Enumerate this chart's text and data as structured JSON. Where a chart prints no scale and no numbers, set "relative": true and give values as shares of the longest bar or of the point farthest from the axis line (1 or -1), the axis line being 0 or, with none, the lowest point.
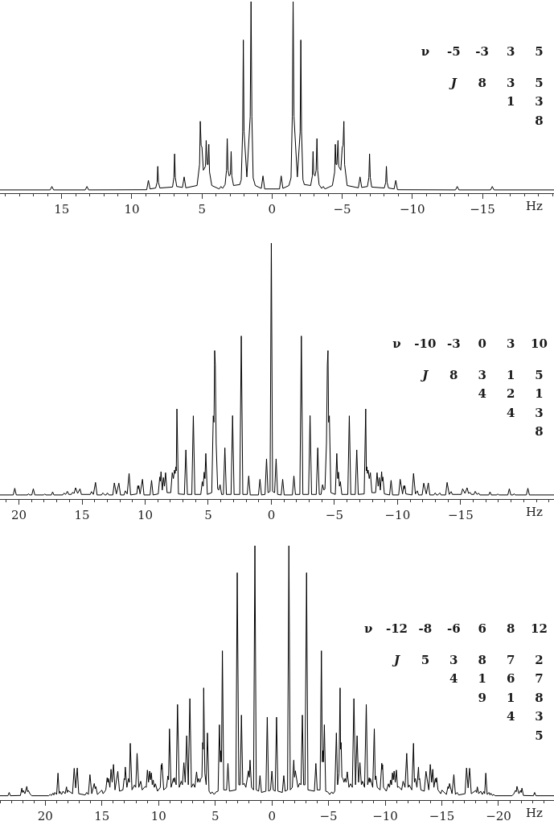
{
  "chart_data": [
    {
      "type": "line",
      "relative": true,
      "xlabel": "Hz",
      "tick_labels": "x",
      "xlim": [
        19.4,
        -20.1
      ],
      "xticks": [
        {
          "value": 19,
          "label": null
        },
        {
          "value": 18,
          "label": null
        },
        {
          "value": 17,
          "label": null
        },
        {
          "value": 16,
          "label": null
        },
        15,
        {
          "value": 14,
          "label": null
        },
        {
          "value": 13,
          "label": null
        },
        {
          "value": 12,
          "label": null
        },
        {
          "value": 11,
          "label": null
        },
        10,
        {
          "value": 9,
          "label": null
        },
        {
          "value": 8,
          "label": null
        },
        {
          "value": 7,
          "label": null
        },
        {
          "value": 6,
          "label": null
        },
        5,
        {
          "value": 4,
          "label": null
        },
        {
          "value": 3,
          "label": null
        },
        {
          "value": 2,
          "label": null
        },
        {
          "value": 1,
          "label": null
        },
        0,
        {
          "value": -1,
          "label": null
        },
        {
          "value": -2,
          "label": null
        },
        {
          "value": -3,
          "label": null
        },
        {
          "value": -4,
          "label": null
        },
        {
          "value": -5,
          "label": "−5"
        },
        {
          "value": -6,
          "label": null
        },
        {
          "value": -7,
          "label": null
        },
        {
          "value": -8,
          "label": null
        },
        {
          "value": -9,
          "label": null
        },
        {
          "value": -10,
          "label": "−10"
        },
        {
          "value": -11,
          "label": null
        },
        {
          "value": -12,
          "label": null
        },
        {
          "value": -13,
          "label": null
        },
        {
          "value": -14,
          "label": null
        },
        {
          "value": -15,
          "label": "−15"
        },
        {
          "value": -16,
          "label": null
        },
        {
          "value": -17,
          "label": null
        },
        {
          "value": -18,
          "label": null
        },
        {
          "value": -19,
          "label": null
        },
        {
          "value": -20,
          "label": null
        }
      ],
      "annotations": [
        "ν -5 -3 3 5\nJ 8 3 5\n1 3\n8"
      ],
      "x": [
        19.4,
        15.82,
        15.7,
        15.58,
        13.32,
        13.2,
        13.08,
        8.94,
        8.82,
        8.7,
        8.3,
        8.2,
        8.15,
        8.1,
        8.0,
        7.1,
        7.0,
        6.95,
        6.9,
        6.8,
        6.39,
        6.27,
        6.15,
        5.35,
        5.17,
        5.12,
        5.06,
        5.0,
        4.9,
        4.75,
        4.7,
        4.62,
        4.56,
        4.51,
        4.46,
        4.3,
        3.77,
        3.65,
        3.53,
        3.35,
        3.25,
        3.2,
        3.14,
        3.06,
        2.97,
        2.92,
        2.87,
        2.75,
        2.3,
        2.2,
        2.1,
        2.05,
        2.0,
        1.8,
        1.56,
        1.5,
        1.44,
        1.35,
        1.2,
        0.77,
        0.65,
        0.53,
        -0.53,
        -0.65,
        -0.77,
        -1.2,
        -1.35,
        -1.44,
        -1.5,
        -1.56,
        -1.8,
        -2.0,
        -2.05,
        -2.1,
        -2.2,
        -2.3,
        -2.75,
        -2.87,
        -2.92,
        -2.97,
        -3.06,
        -3.14,
        -3.2,
        -3.25,
        -3.35,
        -3.53,
        -3.65,
        -3.77,
        -4.3,
        -4.46,
        -4.51,
        -4.56,
        -4.62,
        -4.7,
        -4.75,
        -4.9,
        -5.0,
        -5.06,
        -5.12,
        -5.17,
        -5.35,
        -6.15,
        -6.27,
        -6.39,
        -6.8,
        -6.9,
        -6.95,
        -7.0,
        -7.1,
        -8.0,
        -8.1,
        -8.15,
        -8.2,
        -8.3,
        -8.7,
        -8.82,
        -8.94,
        -13.08,
        -13.2,
        -13.32,
        -15.58,
        -15.7,
        -15.82,
        -20.1
      ],
      "series": [
        {
          "color": "#000000",
          "values": [
            0.017,
            0.017,
            0.035,
            0.017,
            0.017,
            0.035,
            0.017,
            0.018,
            0.067,
            0.022,
            0.027,
            0.056,
            0.14,
            0.056,
            0.027,
            0.032,
            0.082,
            0.205,
            0.082,
            0.035,
            0.03,
            0.085,
            0.028,
            0.04,
            0.15,
            0.375,
            0.25,
            0.24,
            0.12,
            0.14,
            0.275,
            0.15,
            0.15,
            0.255,
            0.11,
            0.04,
            0.022,
            0.035,
            0.025,
            0.045,
            0.12,
            0.285,
            0.12,
            0.09,
            0.1,
            0.218,
            0.09,
            0.04,
            0.045,
            0.07,
            0.32,
            0.8,
            0.32,
            0.085,
            0.4,
            1.0,
            0.4,
            0.08,
            0.04,
            0.025,
            0.09,
            0.022,
            0.022,
            0.09,
            0.025,
            0.04,
            0.08,
            0.4,
            1.0,
            0.4,
            0.085,
            0.32,
            0.8,
            0.32,
            0.07,
            0.045,
            0.04,
            0.09,
            0.218,
            0.1,
            0.09,
            0.12,
            0.285,
            0.12,
            0.045,
            0.025,
            0.035,
            0.022,
            0.04,
            0.11,
            0.255,
            0.15,
            0.15,
            0.275,
            0.14,
            0.12,
            0.24,
            0.25,
            0.375,
            0.15,
            0.04,
            0.028,
            0.085,
            0.03,
            0.035,
            0.082,
            0.205,
            0.082,
            0.032,
            0.027,
            0.056,
            0.14,
            0.056,
            0.027,
            0.022,
            0.067,
            0.018,
            0.017,
            0.035,
            0.017,
            0.017,
            0.035,
            0.017,
            0.017
          ]
        }
      ]
    },
    {
      "type": "line",
      "relative": true,
      "xlabel": "Hz",
      "tick_labels": "x",
      "xlim": [
        21.5,
        -22.4
      ],
      "xticks": [
        {
          "value": 21,
          "label": null
        },
        20,
        {
          "value": 19,
          "label": null
        },
        {
          "value": 18,
          "label": null
        },
        {
          "value": 17,
          "label": null
        },
        {
          "value": 16,
          "label": null
        },
        15,
        {
          "value": 14,
          "label": null
        },
        {
          "value": 13,
          "label": null
        },
        {
          "value": 12,
          "label": null
        },
        {
          "value": 11,
          "label": null
        },
        10,
        {
          "value": 9,
          "label": null
        },
        {
          "value": 8,
          "label": null
        },
        {
          "value": 7,
          "label": null
        },
        {
          "value": 6,
          "label": null
        },
        5,
        {
          "value": 4,
          "label": null
        },
        {
          "value": 3,
          "label": null
        },
        {
          "value": 2,
          "label": null
        },
        {
          "value": 1,
          "label": null
        },
        0,
        {
          "value": -1,
          "label": null
        },
        {
          "value": -2,
          "label": null
        },
        {
          "value": -3,
          "label": null
        },
        {
          "value": -4,
          "label": null
        },
        {
          "value": -5,
          "label": "−5"
        },
        {
          "value": -6,
          "label": null
        },
        {
          "value": -7,
          "label": null
        },
        {
          "value": -8,
          "label": null
        },
        {
          "value": -9,
          "label": null
        },
        {
          "value": -10,
          "label": "−10"
        },
        {
          "value": -11,
          "label": null
        },
        {
          "value": -12,
          "label": null
        },
        {
          "value": -13,
          "label": null
        },
        {
          "value": -14,
          "label": null
        },
        {
          "value": -15,
          "label": "−15"
        },
        {
          "value": -16,
          "label": null
        },
        {
          "value": -17,
          "label": null
        },
        {
          "value": -18,
          "label": null
        },
        {
          "value": -19,
          "label": null
        },
        {
          "value": -20,
          "label": null
        },
        {
          "value": -21,
          "label": null
        },
        {
          "value": -22,
          "label": null
        }
      ],
      "annotations": [
        "ν -10 -3 0 3 10\nJ 8 3 1 5\n4 2 1\n4 3\n8"
      ],
      "x": [
        21.5,
        20.45,
        20.33,
        20.21,
        19.32,
        19.24,
        19.16,
        18.98,
        18.86,
        18.74,
        18.03,
        17.95,
        17.87,
        17.43,
        17.33,
        17.23,
        16.53,
        16.43,
        16.3,
        16.16,
        16.05,
        15.85,
        15.75,
        15.63,
        15.51,
        15.35,
        15.16,
        15.05,
        14.35,
        14.25,
        14.1,
        13.93,
        13.81,
        13.45,
        13.35,
        13.2,
        13.09,
        12.99,
        12.87,
        12.56,
        12.44,
        12.28,
        12.08,
        11.95,
        11.67,
        11.57,
        11.42,
        11.27,
        11.15,
        10.66,
        10.58,
        10.54,
        10.5,
        10.4,
        10.21,
        10.09,
        9.61,
        9.49,
        9.37,
        8.96,
        8.84,
        8.79,
        8.74,
        8.64,
        8.55,
        8.47,
        8.38,
        8.26,
        7.97,
        7.85,
        7.76,
        7.67,
        7.62,
        7.57,
        7.53,
        7.48,
        7.36,
        6.89,
        6.77,
        6.65,
        6.3,
        6.18,
        6.06,
        5.59,
        5.47,
        5.4,
        5.32,
        5.26,
        5.19,
        5.07,
        4.72,
        4.6,
        4.54,
        4.49,
        4.44,
        4.37,
        4.25,
        4.17,
        4.06,
        3.94,
        3.8,
        3.68,
        3.56,
        3.19,
        3.07,
        2.95,
        2.5,
        2.38,
        2.26,
        1.91,
        1.79,
        1.67,
        1.02,
        0.9,
        0.78,
        0.5,
        0.38,
        0.26,
        0.1,
        0,
        -0.1,
        -0.26,
        -0.38,
        -0.5,
        -0.78,
        -0.9,
        -1.02,
        -1.67,
        -1.79,
        -1.91,
        -2.26,
        -2.38,
        -2.5,
        -2.95,
        -3.07,
        -3.19,
        -3.56,
        -3.68,
        -3.8,
        -3.94,
        -4.06,
        -4.17,
        -4.25,
        -4.37,
        -4.44,
        -4.49,
        -4.54,
        -4.6,
        -4.72,
        -5.07,
        -5.19,
        -5.26,
        -5.32,
        -5.4,
        -5.47,
        -5.59,
        -6.06,
        -6.18,
        -6.3,
        -6.65,
        -6.77,
        -6.89,
        -7.36,
        -7.48,
        -7.53,
        -7.57,
        -7.62,
        -7.67,
        -7.76,
        -7.85,
        -7.97,
        -8.26,
        -8.38,
        -8.47,
        -8.55,
        -8.64,
        -8.74,
        -8.79,
        -8.84,
        -8.96,
        -9.37,
        -9.49,
        -9.61,
        -10.09,
        -10.21,
        -10.4,
        -10.5,
        -10.54,
        -10.58,
        -10.66,
        -11.15,
        -11.27,
        -11.42,
        -11.57,
        -11.67,
        -11.95,
        -12.08,
        -12.28,
        -12.44,
        -12.56,
        -12.87,
        -12.99,
        -13.09,
        -13.2,
        -13.35,
        -13.45,
        -13.81,
        -13.93,
        -14.1,
        -14.25,
        -14.35,
        -15.05,
        -15.16,
        -15.35,
        -15.51,
        -15.63,
        -15.75,
        -15.85,
        -16.05,
        -16.16,
        -16.3,
        -16.43,
        -16.53,
        -17.23,
        -17.33,
        -17.43,
        -17.87,
        -17.95,
        -18.03,
        -18.74,
        -18.86,
        -18.98,
        -19.16,
        -19.24,
        -19.32,
        -20.21,
        -20.33,
        -20.45,
        -22.4
      ],
      "series": [
        {
          "color": "#000000",
          "values": [
            0.016,
            0.016,
            0.042,
            0.016,
            0.016,
            0.021,
            0.016,
            0.016,
            0.04,
            0.016,
            0.016,
            0.02,
            0.016,
            0.016,
            0.028,
            0.016,
            0.016,
            0.023,
            0.018,
            0.03,
            0.018,
            0.018,
            0.026,
            0.022,
            0.044,
            0.022,
            0.04,
            0.018,
            0.018,
            0.029,
            0.018,
            0.065,
            0.016,
            0.016,
            0.024,
            0.016,
            0.016,
            0.024,
            0.016,
            0.016,
            0.063,
            0.02,
            0.062,
            0.016,
            0.016,
            0.032,
            0.02,
            0.1,
            0.016,
            0.02,
            0.052,
            0.04,
            0.052,
            0.02,
            0.077,
            0.016,
            0.016,
            0.073,
            0.016,
            0.02,
            0.086,
            0.07,
            0.107,
            0.035,
            0.084,
            0.05,
            0.103,
            0.025,
            0.025,
            0.103,
            0.08,
            0.113,
            0.1,
            0.126,
            0.11,
            0.352,
            0.02,
            0.018,
            0.192,
            0.018,
            0.018,
            0.325,
            0.018,
            0.018,
            0.068,
            0.05,
            0.105,
            0.08,
            0.178,
            0.018,
            0.025,
            0.325,
            0.3,
            0.58,
            0.524,
            0.217,
            0.04,
            0.035,
            0.056,
            0.018,
            0.018,
            0.2,
            0.018,
            0.018,
            0.326,
            0.018,
            0.018,
            0.637,
            0.018,
            0.018,
            0.09,
            0.016,
            0.016,
            0.077,
            0.016,
            0.018,
            0.157,
            0.025,
            0.03,
            1.0,
            0.03,
            0.025,
            0.157,
            0.018,
            0.016,
            0.077,
            0.016,
            0.016,
            0.09,
            0.018,
            0.018,
            0.637,
            0.018,
            0.018,
            0.326,
            0.018,
            0.018,
            0.2,
            0.018,
            0.018,
            0.056,
            0.035,
            0.04,
            0.217,
            0.524,
            0.58,
            0.3,
            0.325,
            0.025,
            0.018,
            0.178,
            0.08,
            0.105,
            0.05,
            0.068,
            0.018,
            0.018,
            0.325,
            0.018,
            0.018,
            0.192,
            0.018,
            0.02,
            0.352,
            0.11,
            0.126,
            0.1,
            0.113,
            0.08,
            0.103,
            0.025,
            0.025,
            0.103,
            0.05,
            0.084,
            0.035,
            0.107,
            0.07,
            0.086,
            0.02,
            0.016,
            0.073,
            0.016,
            0.016,
            0.077,
            0.02,
            0.052,
            0.04,
            0.052,
            0.02,
            0.016,
            0.1,
            0.02,
            0.032,
            0.016,
            0.016,
            0.062,
            0.02,
            0.063,
            0.016,
            0.016,
            0.024,
            0.016,
            0.016,
            0.024,
            0.016,
            0.016,
            0.065,
            0.018,
            0.029,
            0.018,
            0.018,
            0.04,
            0.022,
            0.044,
            0.022,
            0.026,
            0.018,
            0.018,
            0.03,
            0.018,
            0.023,
            0.016,
            0.016,
            0.028,
            0.016,
            0.016,
            0.02,
            0.016,
            0.016,
            0.04,
            0.016,
            0.016,
            0.021,
            0.016,
            0.016,
            0.042,
            0.016,
            0.016
          ]
        }
      ]
    },
    {
      "type": "line",
      "relative": true,
      "xlabel": "Hz",
      "tick_labels": "x",
      "xlim": [
        24,
        -24.9
      ],
      "xticks": [
        {
          "value": 24,
          "label": null
        },
        {
          "value": 23,
          "label": null
        },
        {
          "value": 22,
          "label": null
        },
        {
          "value": 21,
          "label": null
        },
        20,
        {
          "value": 19,
          "label": null
        },
        {
          "value": 18,
          "label": null
        },
        {
          "value": 17,
          "label": null
        },
        {
          "value": 16,
          "label": null
        },
        15,
        {
          "value": 14,
          "label": null
        },
        {
          "value": 13,
          "label": null
        },
        {
          "value": 12,
          "label": null
        },
        {
          "value": 11,
          "label": null
        },
        10,
        {
          "value": 9,
          "label": null
        },
        {
          "value": 8,
          "label": null
        },
        {
          "value": 7,
          "label": null
        },
        {
          "value": 6,
          "label": null
        },
        5,
        {
          "value": 4,
          "label": null
        },
        {
          "value": 3,
          "label": null
        },
        {
          "value": 2,
          "label": null
        },
        {
          "value": 1,
          "label": null
        },
        0,
        {
          "value": -1,
          "label": null
        },
        {
          "value": -2,
          "label": null
        },
        {
          "value": -3,
          "label": null
        },
        {
          "value": -4,
          "label": null
        },
        {
          "value": -5,
          "label": "−5"
        },
        {
          "value": -6,
          "label": null
        },
        {
          "value": -7,
          "label": null
        },
        {
          "value": -8,
          "label": null
        },
        {
          "value": -9,
          "label": null
        },
        {
          "value": -10,
          "label": "−10"
        },
        {
          "value": -11,
          "label": null
        },
        {
          "value": -12,
          "label": null
        },
        {
          "value": -13,
          "label": null
        },
        {
          "value": -14,
          "label": null
        },
        {
          "value": -15,
          "label": "−15"
        },
        {
          "value": -16,
          "label": null
        },
        {
          "value": -17,
          "label": null
        },
        {
          "value": -18,
          "label": null
        },
        {
          "value": -19,
          "label": null
        },
        {
          "value": -20,
          "label": "−20"
        },
        {
          "value": -21,
          "label": null
        },
        {
          "value": -22,
          "label": null
        },
        {
          "value": -23,
          "label": null
        },
        {
          "value": -24,
          "label": null
        }
      ],
      "annotations": [
        "ν -12 -8 -6 6 8 12\nJ 5 3 8 7 2\n4 1 6 7\n9 1 8\n4 3\n5"
      ],
      "x": [
        24,
        23.3,
        23.19,
        23.08,
        22.2,
        22.07,
        22.01,
        21.95,
        21.8,
        21.63,
        21.57,
        21.5,
        21.36,
        21.2,
        19.7,
        19.58,
        19.46,
        19.33,
        19.25,
        19.16,
        19.0,
        18.88,
        18.78,
        18.71,
        18.57,
        18.43,
        18.25,
        18.13,
        18.06,
        18.0,
        17.6,
        17.45,
        17.32,
        17.18,
        17.05,
        16.48,
        16.35,
        16.2,
        16.06,
        15.9,
        15.68,
        15.6,
        15.54,
        15.4,
        15.01,
        14.9,
        14.66,
        14.54,
        14.48,
        14.43,
        14.3,
        14.2,
        14.1,
        13.98,
        13.85,
        13.6,
        13.45,
        13.15,
        13.04,
        12.99,
        12.94,
        12.8,
        12.66,
        12.58,
        12.5,
        12.35,
        12.13,
        12.02,
        11.9,
        11.75,
        11.58,
        11.45,
        11.19,
        11.09,
        10.99,
        10.89,
        10.79,
        10.72,
        10.64,
        10.56,
        10.48,
        10.38,
        10.28,
        10.1,
        9.85,
        9.77,
        9.73,
        9.7,
        9.55,
        9.3,
        9.18,
        9.12,
        9.04,
        8.9,
        8.69,
        8.64,
        8.59,
        8.45,
        8.33,
        8.18,
        8.0,
        7.9,
        7.77,
        7.65,
        7.52,
        7.38,
        7.24,
        7.1,
        6.94,
        6.8,
        6.65,
        6.55,
        6.46,
        6.36,
        6.27,
        6.18,
        6.11,
        6.06,
        6.02,
        5.92,
        5.8,
        5.69,
        5.55,
        5.4,
        5.28,
        5.1,
        4.93,
        4.75,
        4.63,
        4.55,
        4.5,
        4.45,
        4.37,
        4.25,
        4.0,
        3.88,
        3.75,
        3.18,
        3.06,
        2.92,
        2.8,
        2.69,
        2.57,
        2.45,
        2.3,
        2.07,
        2.0,
        1.93,
        1.8,
        1.62,
        1.5,
        1.38,
        1.17,
        1.05,
        0.92,
        0.53,
        0.41,
        0.29,
        0.12,
        0,
        -0.12,
        -0.29,
        -0.41,
        -0.53,
        -0.92,
        -1.05,
        -1.17,
        -1.38,
        -1.5,
        -1.62,
        -1.8,
        -1.93,
        -2.0,
        -2.07,
        -2.3,
        -2.45,
        -2.57,
        -2.69,
        -2.8,
        -2.92,
        -3.06,
        -3.18,
        -3.75,
        -3.88,
        -4.0,
        -4.25,
        -4.37,
        -4.45,
        -4.5,
        -4.55,
        -4.63,
        -4.75,
        -4.93,
        -5.1,
        -5.28,
        -5.4,
        -5.55,
        -5.69,
        -5.8,
        -5.92,
        -6.02,
        -6.06,
        -6.11,
        -6.18,
        -6.27,
        -6.36,
        -6.46,
        -6.55,
        -6.65,
        -6.8,
        -6.94,
        -7.1,
        -7.24,
        -7.38,
        -7.52,
        -7.65,
        -7.77,
        -7.9,
        -8.0,
        -8.18,
        -8.33,
        -8.45,
        -8.59,
        -8.64,
        -8.69,
        -8.9,
        -9.04,
        -9.12,
        -9.18,
        -9.3,
        -9.55,
        -9.7,
        -9.73,
        -9.77,
        -9.85,
        -10.1,
        -10.28,
        -10.38,
        -10.48,
        -10.56,
        -10.64,
        -10.72,
        -10.79,
        -10.89,
        -10.99,
        -11.09,
        -11.19,
        -11.45,
        -11.58,
        -11.75,
        -11.9,
        -12.02,
        -12.13,
        -12.35,
        -12.5,
        -12.58,
        -12.66,
        -12.8,
        -12.94,
        -12.99,
        -13.04,
        -13.15,
        -13.45,
        -13.6,
        -13.85,
        -13.98,
        -14.1,
        -14.2,
        -14.3,
        -14.43,
        -14.48,
        -14.54,
        -14.66,
        -14.9,
        -15.01,
        -15.4,
        -15.54,
        -15.6,
        -15.68,
        -15.9,
        -16.06,
        -16.2,
        -16.35,
        -16.48,
        -17.05,
        -17.18,
        -17.32,
        -17.45,
        -17.6,
        -18.0,
        -18.06,
        -18.13,
        -18.25,
        -18.43,
        -18.57,
        -18.71,
        -18.78,
        -18.88,
        -19.0,
        -19.16,
        -19.25,
        -19.33,
        -19.46,
        -19.58,
        -19.7,
        -21.2,
        -21.36,
        -21.5,
        -21.57,
        -21.63,
        -21.8,
        -21.95,
        -22.01,
        -22.07,
        -22.2,
        -23.08,
        -23.19,
        -23.3,
        -24.9
      ],
      "series": [
        {
          "color": "#000000",
          "values": [
            0.017,
            0.017,
            0.03,
            0.017,
            0.018,
            0.047,
            0.03,
            0.038,
            0.025,
            0.054,
            0.033,
            0.038,
            0.025,
            0.017,
            0.017,
            0.022,
            0.018,
            0.027,
            0.02,
            0.03,
            0.022,
            0.106,
            0.025,
            0.034,
            0.022,
            0.035,
            0.025,
            0.052,
            0.03,
            0.038,
            0.025,
            0.125,
            0.048,
            0.126,
            0.025,
            0.02,
            0.03,
            0.022,
            0.1,
            0.025,
            0.065,
            0.045,
            0.053,
            0.022,
            0.039,
            0.025,
            0.04,
            0.088,
            0.07,
            0.085,
            0.05,
            0.121,
            0.07,
            0.14,
            0.04,
            0.113,
            0.035,
            0.04,
            0.085,
            0.08,
            0.13,
            0.05,
            0.085,
            0.07,
            0.223,
            0.04,
            0.059,
            0.05,
            0.184,
            0.05,
            0.074,
            0.04,
            0.053,
            0.05,
            0.118,
            0.07,
            0.114,
            0.08,
            0.107,
            0.06,
            0.079,
            0.05,
            0.064,
            0.035,
            0.05,
            0.139,
            0.12,
            0.145,
            0.04,
            0.05,
            0.095,
            0.08,
            0.28,
            0.05,
            0.085,
            0.07,
            0.088,
            0.06,
            0.376,
            0.05,
            0.074,
            0.06,
            0.147,
            0.07,
            0.253,
            0.06,
            0.399,
            0.05,
            0.064,
            0.05,
            0.111,
            0.07,
            0.085,
            0.07,
            0.085,
            0.09,
            0.226,
            0.2,
            0.441,
            0.106,
            0.06,
            0.264,
            0.035,
            0.025,
            0.032,
            0.022,
            0.032,
            0.035,
            0.296,
            0.15,
            0.194,
            0.15,
            0.587,
            0.04,
            0.04,
            0.144,
            0.035,
            0.04,
            0.894,
            0.06,
            0.06,
            0.334,
            0.06,
            0.066,
            0.05,
            0.115,
            0.09,
            0.157,
            0.05,
            0.04,
            1.0,
            0.04,
            0.035,
            0.096,
            0.03,
            0.035,
            0.326,
            0.035,
            0.04,
            0.114,
            0.04,
            0.035,
            0.326,
            0.035,
            0.03,
            0.096,
            0.035,
            0.04,
            1.0,
            0.04,
            0.05,
            0.157,
            0.09,
            0.115,
            0.05,
            0.066,
            0.06,
            0.334,
            0.06,
            0.06,
            0.894,
            0.04,
            0.035,
            0.144,
            0.04,
            0.04,
            0.587,
            0.15,
            0.194,
            0.15,
            0.296,
            0.035,
            0.032,
            0.022,
            0.032,
            0.025,
            0.035,
            0.264,
            0.06,
            0.106,
            0.441,
            0.2,
            0.226,
            0.09,
            0.085,
            0.07,
            0.085,
            0.07,
            0.111,
            0.05,
            0.064,
            0.05,
            0.399,
            0.06,
            0.253,
            0.07,
            0.147,
            0.06,
            0.074,
            0.05,
            0.376,
            0.06,
            0.088,
            0.07,
            0.085,
            0.05,
            0.28,
            0.08,
            0.095,
            0.05,
            0.04,
            0.145,
            0.12,
            0.139,
            0.05,
            0.035,
            0.064,
            0.05,
            0.079,
            0.06,
            0.107,
            0.08,
            0.114,
            0.07,
            0.118,
            0.05,
            0.053,
            0.04,
            0.074,
            0.05,
            0.184,
            0.05,
            0.059,
            0.04,
            0.223,
            0.07,
            0.085,
            0.05,
            0.13,
            0.08,
            0.085,
            0.04,
            0.035,
            0.113,
            0.04,
            0.14,
            0.07,
            0.121,
            0.05,
            0.085,
            0.07,
            0.088,
            0.04,
            0.025,
            0.039,
            0.022,
            0.053,
            0.045,
            0.065,
            0.025,
            0.1,
            0.022,
            0.03,
            0.02,
            0.025,
            0.126,
            0.048,
            0.125,
            0.025,
            0.038,
            0.03,
            0.052,
            0.025,
            0.035,
            0.022,
            0.034,
            0.025,
            0.106,
            0.022,
            0.03,
            0.02,
            0.027,
            0.018,
            0.022,
            0.017,
            0.017,
            0.025,
            0.038,
            0.033,
            0.054,
            0.025,
            0.038,
            0.03,
            0.047,
            0.018,
            0.017,
            0.03,
            0.017,
            0.017
          ]
        }
      ]
    }
  ]
}
